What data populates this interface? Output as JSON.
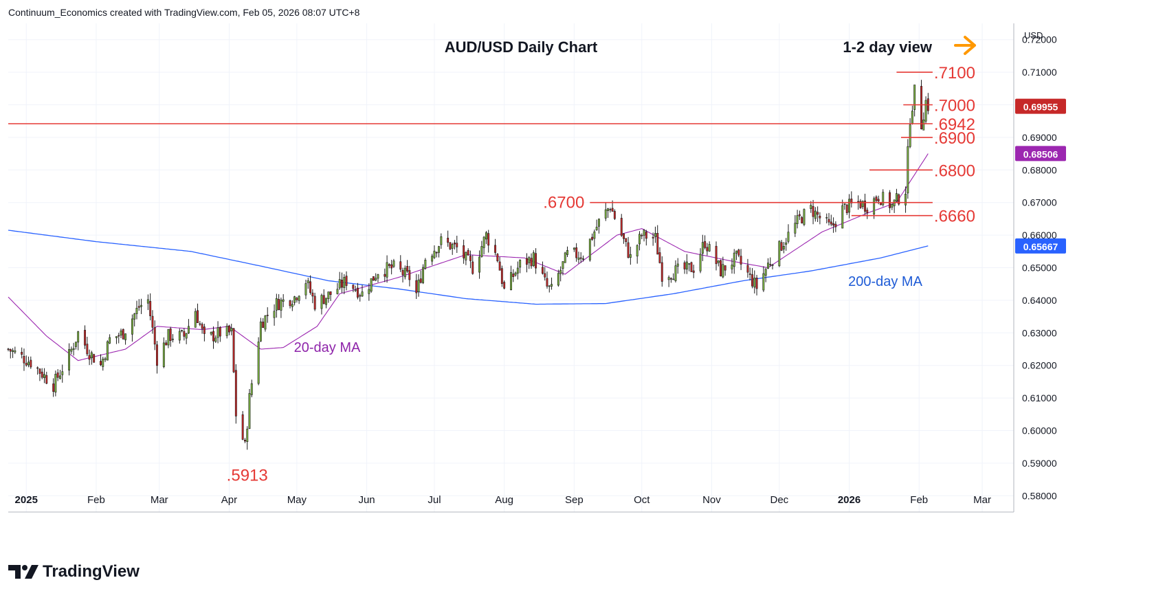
{
  "header": {
    "attribution": "Continuum_Economics created with TradingView.com, Feb 05, 2026 08:07 UTC+8"
  },
  "brand": {
    "name": "TradingView"
  },
  "colors": {
    "up_candle": "#7cb342",
    "down_candle": "#c62828",
    "wick": "#1a1a1a",
    "ma20": "#9c27b0",
    "ma200": "#2962ff",
    "level": "#e53935",
    "label_red": "#e53935",
    "arrow": "#ff9800",
    "ma200_label": "#1e5bd6",
    "ma20_label": "#8e24aa"
  },
  "chart_data": {
    "type": "candlestick",
    "title": "AUD/USD Daily Chart",
    "subtitle": "1-2 day view",
    "currency": "USD",
    "ylim": [
      0.575,
      0.725
    ],
    "y_ticks": [
      "0.72000",
      "0.71000",
      "0.70000",
      "0.69000",
      "0.68000",
      "0.67000",
      "0.66000",
      "0.65000",
      "0.64000",
      "0.63000",
      "0.62000",
      "0.61000",
      "0.60000",
      "0.59000",
      "0.58000"
    ],
    "x_ticks": [
      {
        "label": "2025",
        "date": "2025-01-01",
        "bold": true
      },
      {
        "label": "Feb",
        "date": "2025-02-01"
      },
      {
        "label": "Mar",
        "date": "2025-03-01"
      },
      {
        "label": "Apr",
        "date": "2025-04-01"
      },
      {
        "label": "May",
        "date": "2025-05-01"
      },
      {
        "label": "Jun",
        "date": "2025-06-01"
      },
      {
        "label": "Jul",
        "date": "2025-07-01"
      },
      {
        "label": "Aug",
        "date": "2025-08-01"
      },
      {
        "label": "Sep",
        "date": "2025-09-01"
      },
      {
        "label": "Oct",
        "date": "2025-10-01"
      },
      {
        "label": "Nov",
        "date": "2025-11-01"
      },
      {
        "label": "Dec",
        "date": "2025-12-01"
      },
      {
        "label": "2026",
        "date": "2026-01-01",
        "bold": true
      },
      {
        "label": "Feb",
        "date": "2026-02-01"
      },
      {
        "label": "Mar",
        "date": "2026-03-01"
      }
    ],
    "x_range": [
      "2024-12-24",
      "2026-03-15"
    ],
    "close_anchors": [
      [
        "2024-12-24",
        0.625
      ],
      [
        "2025-01-03",
        0.621
      ],
      [
        "2025-01-13",
        0.614
      ],
      [
        "2025-01-20",
        0.623
      ],
      [
        "2025-01-24",
        0.63
      ],
      [
        "2025-01-29",
        0.624
      ],
      [
        "2025-02-03",
        0.62
      ],
      [
        "2025-02-07",
        0.628
      ],
      [
        "2025-02-13",
        0.63
      ],
      [
        "2025-02-20",
        0.638
      ],
      [
        "2025-02-24",
        0.64
      ],
      [
        "2025-02-28",
        0.622
      ],
      [
        "2025-03-05",
        0.629
      ],
      [
        "2025-03-12",
        0.629
      ],
      [
        "2025-03-17",
        0.637
      ],
      [
        "2025-03-21",
        0.628
      ],
      [
        "2025-03-28",
        0.63
      ],
      [
        "2025-04-02",
        0.63
      ],
      [
        "2025-04-04",
        0.605
      ],
      [
        "2025-04-08",
        0.595
      ],
      [
        "2025-04-10",
        0.61
      ],
      [
        "2025-04-15",
        0.633
      ],
      [
        "2025-04-22",
        0.639
      ],
      [
        "2025-04-30",
        0.641
      ],
      [
        "2025-05-05",
        0.646
      ],
      [
        "2025-05-09",
        0.639
      ],
      [
        "2025-05-16",
        0.642
      ],
      [
        "2025-05-23",
        0.646
      ],
      [
        "2025-05-30",
        0.642
      ],
      [
        "2025-06-06",
        0.649
      ],
      [
        "2025-06-13",
        0.65
      ],
      [
        "2025-06-20",
        0.647
      ],
      [
        "2025-06-23",
        0.642
      ],
      [
        "2025-06-27",
        0.653
      ],
      [
        "2025-07-04",
        0.658
      ],
      [
        "2025-07-11",
        0.656
      ],
      [
        "2025-07-18",
        0.65
      ],
      [
        "2025-07-24",
        0.66
      ],
      [
        "2025-07-29",
        0.653
      ],
      [
        "2025-08-01",
        0.643
      ],
      [
        "2025-08-08",
        0.651
      ],
      [
        "2025-08-14",
        0.653
      ],
      [
        "2025-08-20",
        0.644
      ],
      [
        "2025-08-22",
        0.643
      ],
      [
        "2025-08-29",
        0.654
      ],
      [
        "2025-09-05",
        0.654
      ],
      [
        "2025-09-12",
        0.664
      ],
      [
        "2025-09-17",
        0.669
      ],
      [
        "2025-09-22",
        0.66
      ],
      [
        "2025-09-26",
        0.653
      ],
      [
        "2025-10-01",
        0.66
      ],
      [
        "2025-10-07",
        0.659
      ],
      [
        "2025-10-10",
        0.648
      ],
      [
        "2025-10-17",
        0.649
      ],
      [
        "2025-10-24",
        0.65
      ],
      [
        "2025-10-29",
        0.658
      ],
      [
        "2025-11-05",
        0.649
      ],
      [
        "2025-11-12",
        0.653
      ],
      [
        "2025-11-17",
        0.648
      ],
      [
        "2025-11-21",
        0.644
      ],
      [
        "2025-11-26",
        0.651
      ],
      [
        "2025-12-03",
        0.658
      ],
      [
        "2025-12-10",
        0.665
      ],
      [
        "2025-12-15",
        0.668
      ],
      [
        "2025-12-24",
        0.662
      ],
      [
        "2025-12-29",
        0.668
      ],
      [
        "2026-01-05",
        0.67
      ],
      [
        "2026-01-09",
        0.669
      ],
      [
        "2026-01-14",
        0.672
      ],
      [
        "2026-01-20",
        0.669
      ],
      [
        "2026-01-26",
        0.674
      ],
      [
        "2026-01-28",
        0.696
      ],
      [
        "2026-01-30",
        0.704
      ],
      [
        "2026-02-02",
        0.694
      ],
      [
        "2026-02-04",
        0.701
      ],
      [
        "2026-02-05",
        0.6996
      ]
    ],
    "ma200_anchors": [
      [
        "2024-12-24",
        0.6615
      ],
      [
        "2025-02-01",
        0.658
      ],
      [
        "2025-03-15",
        0.655
      ],
      [
        "2025-04-15",
        0.6505
      ],
      [
        "2025-05-15",
        0.646
      ],
      [
        "2025-06-15",
        0.6435
      ],
      [
        "2025-07-15",
        0.6405
      ],
      [
        "2025-08-15",
        0.6388
      ],
      [
        "2025-09-15",
        0.639
      ],
      [
        "2025-10-15",
        0.642
      ],
      [
        "2025-11-15",
        0.646
      ],
      [
        "2025-12-15",
        0.649
      ],
      [
        "2026-01-15",
        0.653
      ],
      [
        "2026-02-05",
        0.6567
      ]
    ],
    "ma20_anchors": [
      [
        "2024-12-24",
        0.641
      ],
      [
        "2025-01-10",
        0.629
      ],
      [
        "2025-01-24",
        0.6215
      ],
      [
        "2025-02-14",
        0.625
      ],
      [
        "2025-02-28",
        0.632
      ],
      [
        "2025-03-20",
        0.631
      ],
      [
        "2025-04-01",
        0.632
      ],
      [
        "2025-04-15",
        0.625
      ],
      [
        "2025-04-25",
        0.6255
      ],
      [
        "2025-05-10",
        0.632
      ],
      [
        "2025-05-20",
        0.642
      ],
      [
        "2025-06-15",
        0.647
      ],
      [
        "2025-07-15",
        0.654
      ],
      [
        "2025-08-10",
        0.653
      ],
      [
        "2025-08-28",
        0.648
      ],
      [
        "2025-09-20",
        0.66
      ],
      [
        "2025-10-01",
        0.662
      ],
      [
        "2025-10-20",
        0.655
      ],
      [
        "2025-11-10",
        0.652
      ],
      [
        "2025-11-26",
        0.65
      ],
      [
        "2025-12-20",
        0.661
      ],
      [
        "2026-01-10",
        0.667
      ],
      [
        "2026-01-22",
        0.67
      ],
      [
        "2026-02-05",
        0.685
      ]
    ],
    "levels": [
      {
        "label": ".7100",
        "value": 0.71,
        "from": "2026-01-22",
        "to": "2026-02-07"
      },
      {
        "label": ".7000",
        "value": 0.7,
        "from": "2026-01-25",
        "to": "2026-02-07"
      },
      {
        "label": ".6942",
        "value": 0.6942,
        "from": "2024-12-24",
        "to": "2026-02-07"
      },
      {
        "label": ".6900",
        "value": 0.69,
        "from": "2026-01-24",
        "to": "2026-02-07"
      },
      {
        "label": ".6800",
        "value": 0.68,
        "from": "2026-01-10",
        "to": "2026-02-07"
      },
      {
        "label": ".6700",
        "value": 0.67,
        "from": "2025-09-08",
        "to": "2026-02-07"
      },
      {
        "label": ".6660",
        "value": 0.666,
        "from": "2026-01-02",
        "to": "2026-02-07"
      }
    ],
    "annotations": [
      {
        "text": ".5913",
        "value": 0.5913,
        "date": "2025-04-09"
      },
      {
        "text": "200-day MA"
      },
      {
        "text": "20-day MA"
      }
    ],
    "price_tags": [
      {
        "label": "0.69955",
        "value": 0.69955,
        "series": "close"
      },
      {
        "label": "0.68506",
        "value": 0.68506,
        "series": "ma20"
      },
      {
        "label": "0.65667",
        "value": 0.65667,
        "series": "ma200"
      }
    ]
  }
}
